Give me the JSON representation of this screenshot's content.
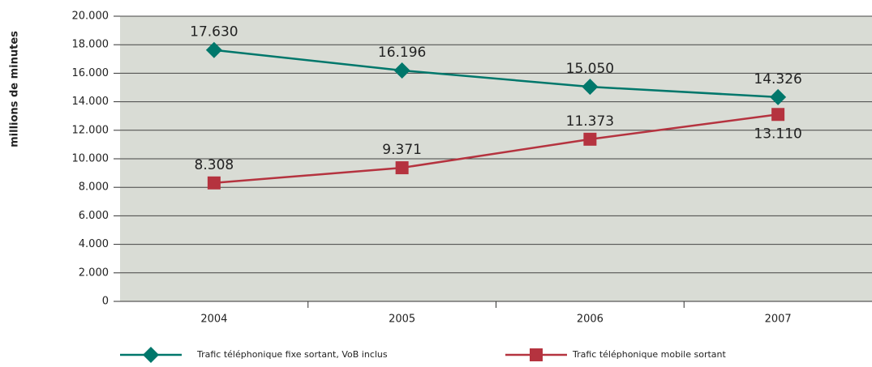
{
  "chart_data": {
    "type": "line",
    "y_label": "millions de minutes",
    "categories": [
      "2004",
      "2005",
      "2006",
      "2007"
    ],
    "series": [
      {
        "name": "Trafic téléphonique fixe sortant, VoB inclus",
        "color": "#00776b",
        "marker": "diamond",
        "values": [
          17630,
          16196,
          15050,
          14326
        ],
        "value_labels": [
          "17.630",
          "16.196",
          "15.050",
          "14.326"
        ]
      },
      {
        "name": "Trafic téléphonique mobile sortant",
        "color": "#b5333f",
        "marker": "square",
        "values": [
          8308,
          9371,
          11373,
          13110
        ],
        "value_labels": [
          "8.308",
          "9.371",
          "11.373",
          "13.110"
        ]
      }
    ],
    "ylim": [
      0,
      20000
    ],
    "yticks": [
      0,
      {
        "value": 2000,
        "label": "2.000"
      },
      {
        "value": 4000,
        "label": "4.000"
      },
      {
        "value": 6000,
        "label": "6.000"
      },
      {
        "value": 8000,
        "label": "8.000"
      },
      {
        "value": 10000,
        "label": "10.000"
      },
      {
        "value": 12000,
        "label": "12.000"
      },
      {
        "value": 14000,
        "label": "14.000"
      },
      {
        "value": 16000,
        "label": "16.000"
      },
      {
        "value": 18000,
        "label": "18.000"
      },
      {
        "value": 20000,
        "label": "20.000"
      }
    ],
    "grid": true
  }
}
